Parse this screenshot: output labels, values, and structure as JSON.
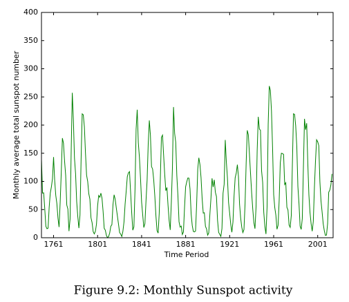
{
  "chart_data": {
    "type": "line",
    "color": "#008000",
    "xlabel": "Time Period",
    "ylabel": "Monthly average total sunspot number",
    "xlim": [
      1750,
      2015
    ],
    "ylim": [
      0,
      400
    ],
    "xticks": [
      1761,
      1801,
      1841,
      1881,
      1921,
      1961,
      2001
    ],
    "yticks": [
      0,
      50,
      100,
      150,
      200,
      250,
      300,
      350,
      400
    ],
    "x": [
      1750,
      1751,
      1752,
      1753,
      1754,
      1755,
      1756,
      1757,
      1758,
      1759,
      1760,
      1761,
      1762,
      1763,
      1764,
      1765,
      1766,
      1767,
      1768,
      1769,
      1770,
      1771,
      1772,
      1773,
      1774,
      1775,
      1776,
      1777,
      1778,
      1779,
      1780,
      1781,
      1782,
      1783,
      1784,
      1785,
      1786,
      1787,
      1788,
      1789,
      1790,
      1791,
      1792,
      1793,
      1794,
      1795,
      1796,
      1797,
      1798,
      1799,
      1800,
      1801,
      1802,
      1803,
      1804,
      1805,
      1806,
      1807,
      1808,
      1809,
      1810,
      1811,
      1812,
      1813,
      1814,
      1815,
      1816,
      1817,
      1818,
      1819,
      1820,
      1821,
      1822,
      1823,
      1824,
      1825,
      1826,
      1827,
      1828,
      1829,
      1830,
      1831,
      1832,
      1833,
      1834,
      1835,
      1836,
      1837,
      1838,
      1839,
      1840,
      1841,
      1842,
      1843,
      1844,
      1845,
      1846,
      1847,
      1848,
      1849,
      1850,
      1851,
      1852,
      1853,
      1854,
      1855,
      1856,
      1857,
      1858,
      1859,
      1860,
      1861,
      1862,
      1863,
      1864,
      1865,
      1866,
      1867,
      1868,
      1869,
      1870,
      1871,
      1872,
      1873,
      1874,
      1875,
      1876,
      1877,
      1878,
      1879,
      1880,
      1881,
      1882,
      1883,
      1884,
      1885,
      1886,
      1887,
      1888,
      1889,
      1890,
      1891,
      1892,
      1893,
      1894,
      1895,
      1896,
      1897,
      1898,
      1899,
      1900,
      1901,
      1902,
      1903,
      1904,
      1905,
      1906,
      1907,
      1908,
      1909,
      1910,
      1911,
      1912,
      1913,
      1914,
      1915,
      1916,
      1917,
      1918,
      1919,
      1920,
      1921,
      1922,
      1923,
      1924,
      1925,
      1926,
      1927,
      1928,
      1929,
      1930,
      1931,
      1932,
      1933,
      1934,
      1935,
      1936,
      1937,
      1938,
      1939,
      1940,
      1941,
      1942,
      1943,
      1944,
      1945,
      1946,
      1947,
      1948,
      1949,
      1950,
      1951,
      1952,
      1953,
      1954,
      1955,
      1956,
      1957,
      1958,
      1959,
      1960,
      1961,
      1962,
      1963,
      1964,
      1965,
      1966,
      1967,
      1968,
      1969,
      1970,
      1971,
      1972,
      1973,
      1974,
      1975,
      1976,
      1977,
      1978,
      1979,
      1980,
      1981,
      1982,
      1983,
      1984,
      1985,
      1986,
      1987,
      1988,
      1989,
      1990,
      1991,
      1992,
      1993,
      1994,
      1995,
      1996,
      1997,
      1998,
      1999,
      2000,
      2001,
      2002,
      2003,
      2004,
      2005,
      2006,
      2007,
      2008,
      2009,
      2010,
      2011,
      2012,
      2013,
      2014
    ],
    "values": [
      139.0,
      79.2,
      79.7,
      51.2,
      20.3,
      16.0,
      17.0,
      54.0,
      79.3,
      90.0,
      104.8,
      143.2,
      102.0,
      75.2,
      60.7,
      34.8,
      19.0,
      63.0,
      116.3,
      176.8,
      168.0,
      136.0,
      110.8,
      58.0,
      51.0,
      11.7,
      33.0,
      154.2,
      257.3,
      209.8,
      141.3,
      113.5,
      64.2,
      38.0,
      17.0,
      40.2,
      138.2,
      220.0,
      218.2,
      196.8,
      149.8,
      111.0,
      100.0,
      78.2,
      68.3,
      35.5,
      26.7,
      10.7,
      6.8,
      11.3,
      24.2,
      56.7,
      75.0,
      71.8,
      79.2,
      70.3,
      46.8,
      16.8,
      13.5,
      4.2,
      0,
      2.3,
      8.3,
      20.3,
      23.2,
      59.0,
      76.3,
      68.3,
      52.9,
      38.5,
      24.2,
      9.2,
      6.3,
      2.2,
      11.4,
      28.2,
      59.9,
      83.0,
      108.5,
      115.2,
      117.4,
      80.8,
      44.3,
      13.4,
      19.5,
      85.8,
      192.7,
      227.3,
      168.7,
      143.0,
      105.5,
      63.3,
      40.3,
      18.1,
      25.1,
      65.8,
      102.7,
      166.3,
      208.3,
      182.5,
      126.3,
      122.0,
      102.7,
      74.1,
      39.0,
      12.7,
      8.2,
      43.4,
      104.4,
      178.3,
      182.2,
      146.6,
      112.1,
      83.5,
      89.2,
      57.8,
      30.7,
      13.9,
      62.8,
      123.6,
      232.0,
      185.3,
      169.2,
      110.1,
      74.5,
      28.3,
      18.9,
      20.7,
      5.7,
      10.0,
      53.7,
      90.5,
      99.0,
      106.1,
      105.8,
      86.3,
      42.4,
      21.8,
      11.2,
      10.4,
      11.8,
      59.5,
      121.7,
      142.0,
      130.0,
      106.6,
      69.4,
      43.8,
      44.4,
      20.2,
      15.7,
      4.6,
      8.5,
      40.8,
      70.1,
      105.5,
      90.1,
      102.8,
      80.9,
      73.2,
      30.9,
      9.5,
      6.0,
      2.4,
      16.1,
      79.0,
      95.0,
      173.6,
      134.6,
      105.7,
      62.7,
      43.5,
      23.7,
      9.7,
      27.9,
      74.0,
      106.5,
      114.7,
      129.7,
      108.2,
      59.4,
      35.1,
      18.6,
      9.2,
      14.6,
      60.2,
      132.8,
      190.6,
      182.6,
      148.0,
      113.0,
      79.2,
      50.8,
      27.1,
      16.1,
      55.3,
      154.3,
      214.7,
      193.0,
      190.7,
      118.9,
      98.3,
      45.0,
      20.1,
      6.6,
      54.2,
      200.7,
      269.3,
      261.7,
      225.1,
      159.0,
      76.4,
      53.4,
      39.9,
      15.0,
      22.0,
      66.8,
      132.9,
      150.0,
      149.4,
      148.0,
      94.4,
      97.6,
      54.1,
      49.2,
      22.5,
      18.4,
      39.3,
      131.0,
      220.1,
      218.9,
      198.9,
      162.4,
      91.0,
      60.5,
      20.6,
      14.8,
      33.9,
      123.0,
      211.1,
      191.8,
      203.3,
      133.0,
      76.1,
      44.9,
      25.1,
      11.6,
      28.9,
      88.3,
      136.3,
      173.9,
      170.4,
      163.6,
      99.3,
      65.3,
      45.8,
      24.7,
      12.6,
      4.2,
      4.8,
      24.9,
      80.8,
      84.5,
      94.0,
      113.3
    ]
  },
  "caption": "Figure 9.2: Monthly Sunspot activity"
}
